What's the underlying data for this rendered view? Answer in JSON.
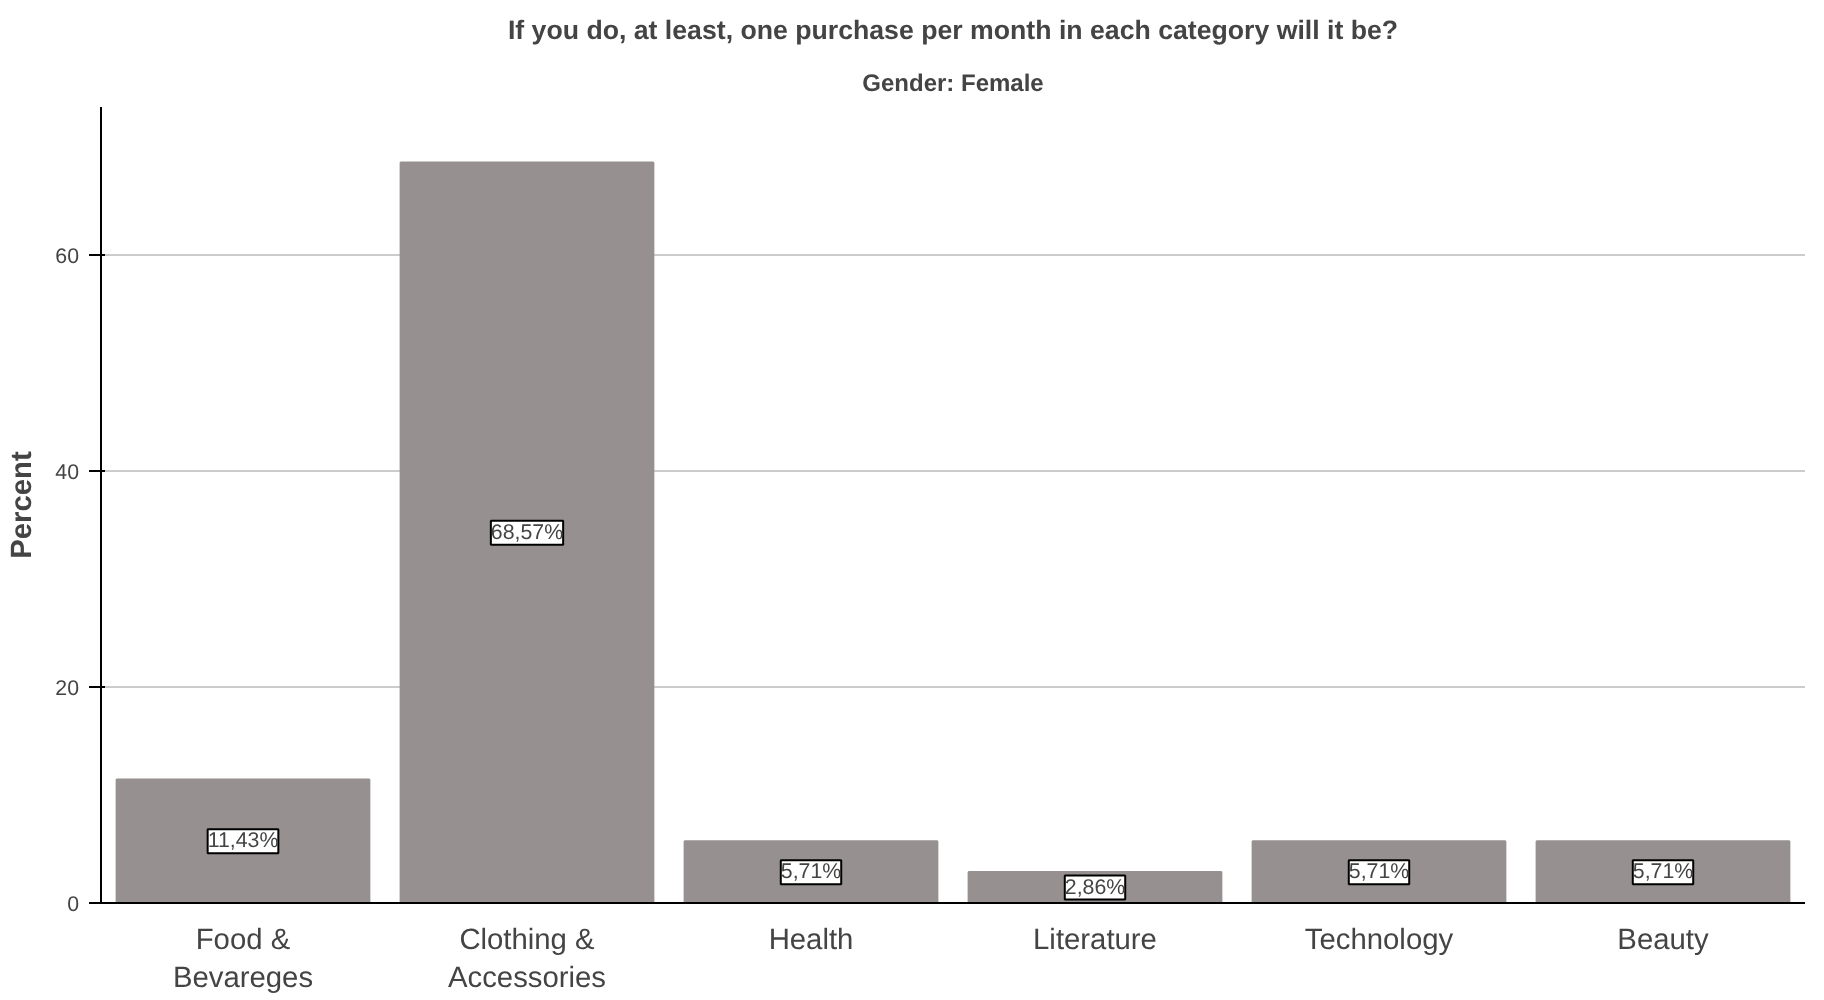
{
  "chart_data": {
    "type": "bar",
    "title": "If you do, at least, one purchase per month in each category will it be?",
    "subtitle": "Gender: Female",
    "ylabel": "Percent",
    "categories": [
      "Food & Bevareges",
      "Clothing & Accessories",
      "Health",
      "Literature",
      "Technology",
      "Beauty"
    ],
    "values": [
      11.43,
      68.57,
      5.71,
      2.86,
      5.71,
      5.71
    ],
    "value_labels": [
      "11,43%",
      "68,57%",
      "5,71%",
      "2,86%",
      "5,71%",
      "5,71%"
    ],
    "color": "#969190",
    "ylim": [
      0,
      73.7
    ],
    "yticks": [
      0,
      20,
      40,
      60
    ],
    "grid": "y"
  }
}
